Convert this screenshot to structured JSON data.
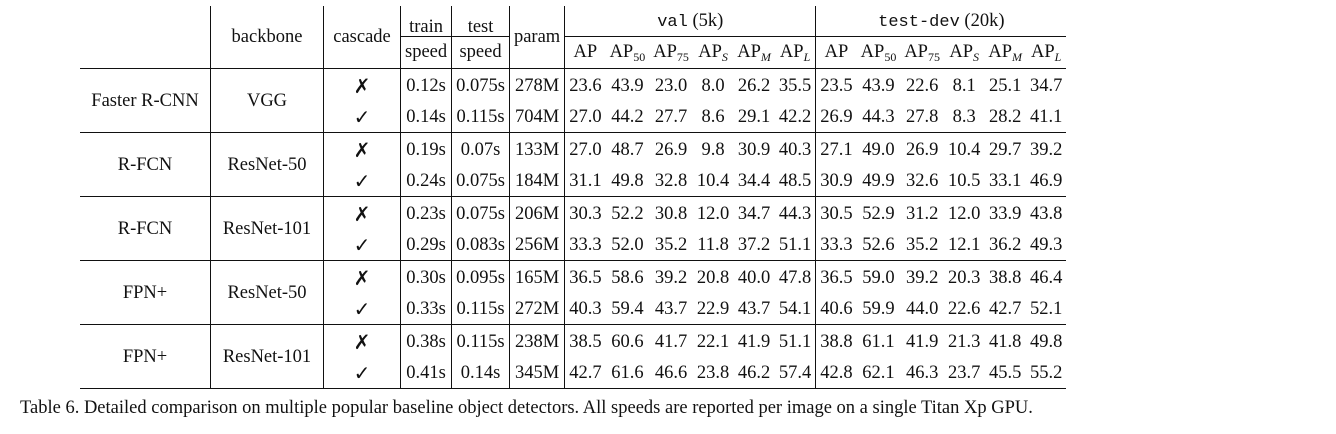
{
  "table": {
    "headers": {
      "backbone": "backbone",
      "cascade": "cascade",
      "train_speed_l1": "train",
      "train_speed_l2": "speed",
      "test_speed_l1": "test",
      "test_speed_l2": "speed",
      "param": "param",
      "val_group_mono": "val",
      "val_group_suffix": " (5k)",
      "testdev_group_mono": "test-dev",
      "testdev_group_suffix": " (20k)",
      "metrics": [
        {
          "base": "AP",
          "sub": ""
        },
        {
          "base": "AP",
          "sub": "50"
        },
        {
          "base": "AP",
          "sub": "75"
        },
        {
          "base": "AP",
          "sub": "S"
        },
        {
          "base": "AP",
          "sub": "M"
        },
        {
          "base": "AP",
          "sub": "L"
        }
      ]
    },
    "groups": [
      {
        "detector": "Faster R-CNN",
        "backbone": "VGG",
        "rows": [
          {
            "cascade": "✗",
            "train": "0.12s",
            "test": "0.075s",
            "param": "278M",
            "val": [
              "23.6",
              "43.9",
              "23.0",
              "8.0",
              "26.2",
              "35.5"
            ],
            "testdev": [
              "23.5",
              "43.9",
              "22.6",
              "8.1",
              "25.1",
              "34.7"
            ]
          },
          {
            "cascade": "✓",
            "train": "0.14s",
            "test": "0.115s",
            "param": "704M",
            "val": [
              "27.0",
              "44.2",
              "27.7",
              "8.6",
              "29.1",
              "42.2"
            ],
            "testdev": [
              "26.9",
              "44.3",
              "27.8",
              "8.3",
              "28.2",
              "41.1"
            ]
          }
        ]
      },
      {
        "detector": "R-FCN",
        "backbone": "ResNet-50",
        "rows": [
          {
            "cascade": "✗",
            "train": "0.19s",
            "test": "0.07s",
            "param": "133M",
            "val": [
              "27.0",
              "48.7",
              "26.9",
              "9.8",
              "30.9",
              "40.3"
            ],
            "testdev": [
              "27.1",
              "49.0",
              "26.9",
              "10.4",
              "29.7",
              "39.2"
            ]
          },
          {
            "cascade": "✓",
            "train": "0.24s",
            "test": "0.075s",
            "param": "184M",
            "val": [
              "31.1",
              "49.8",
              "32.8",
              "10.4",
              "34.4",
              "48.5"
            ],
            "testdev": [
              "30.9",
              "49.9",
              "32.6",
              "10.5",
              "33.1",
              "46.9"
            ]
          }
        ]
      },
      {
        "detector": "R-FCN",
        "backbone": "ResNet-101",
        "rows": [
          {
            "cascade": "✗",
            "train": "0.23s",
            "test": "0.075s",
            "param": "206M",
            "val": [
              "30.3",
              "52.2",
              "30.8",
              "12.0",
              "34.7",
              "44.3"
            ],
            "testdev": [
              "30.5",
              "52.9",
              "31.2",
              "12.0",
              "33.9",
              "43.8"
            ]
          },
          {
            "cascade": "✓",
            "train": "0.29s",
            "test": "0.083s",
            "param": "256M",
            "val": [
              "33.3",
              "52.0",
              "35.2",
              "11.8",
              "37.2",
              "51.1"
            ],
            "testdev": [
              "33.3",
              "52.6",
              "35.2",
              "12.1",
              "36.2",
              "49.3"
            ]
          }
        ]
      },
      {
        "detector": "FPN+",
        "backbone": "ResNet-50",
        "rows": [
          {
            "cascade": "✗",
            "train": "0.30s",
            "test": "0.095s",
            "param": "165M",
            "val": [
              "36.5",
              "58.6",
              "39.2",
              "20.8",
              "40.0",
              "47.8"
            ],
            "testdev": [
              "36.5",
              "59.0",
              "39.2",
              "20.3",
              "38.8",
              "46.4"
            ]
          },
          {
            "cascade": "✓",
            "train": "0.33s",
            "test": "0.115s",
            "param": "272M",
            "val": [
              "40.3",
              "59.4",
              "43.7",
              "22.9",
              "43.7",
              "54.1"
            ],
            "testdev": [
              "40.6",
              "59.9",
              "44.0",
              "22.6",
              "42.7",
              "52.1"
            ]
          }
        ]
      },
      {
        "detector": "FPN+",
        "backbone": "ResNet-101",
        "rows": [
          {
            "cascade": "✗",
            "train": "0.38s",
            "test": "0.115s",
            "param": "238M",
            "val": [
              "38.5",
              "60.6",
              "41.7",
              "22.1",
              "41.9",
              "51.1"
            ],
            "testdev": [
              "38.8",
              "61.1",
              "41.9",
              "21.3",
              "41.8",
              "49.8"
            ]
          },
          {
            "cascade": "✓",
            "train": "0.41s",
            "test": "0.14s",
            "param": "345M",
            "val": [
              "42.7",
              "61.6",
              "46.6",
              "23.8",
              "46.2",
              "57.4"
            ],
            "testdev": [
              "42.8",
              "62.1",
              "46.3",
              "23.7",
              "45.5",
              "55.2"
            ]
          }
        ]
      }
    ]
  },
  "caption": "Table 6. Detailed comparison on multiple popular baseline object detectors. All speeds are reported per image on a single Titan Xp GPU."
}
